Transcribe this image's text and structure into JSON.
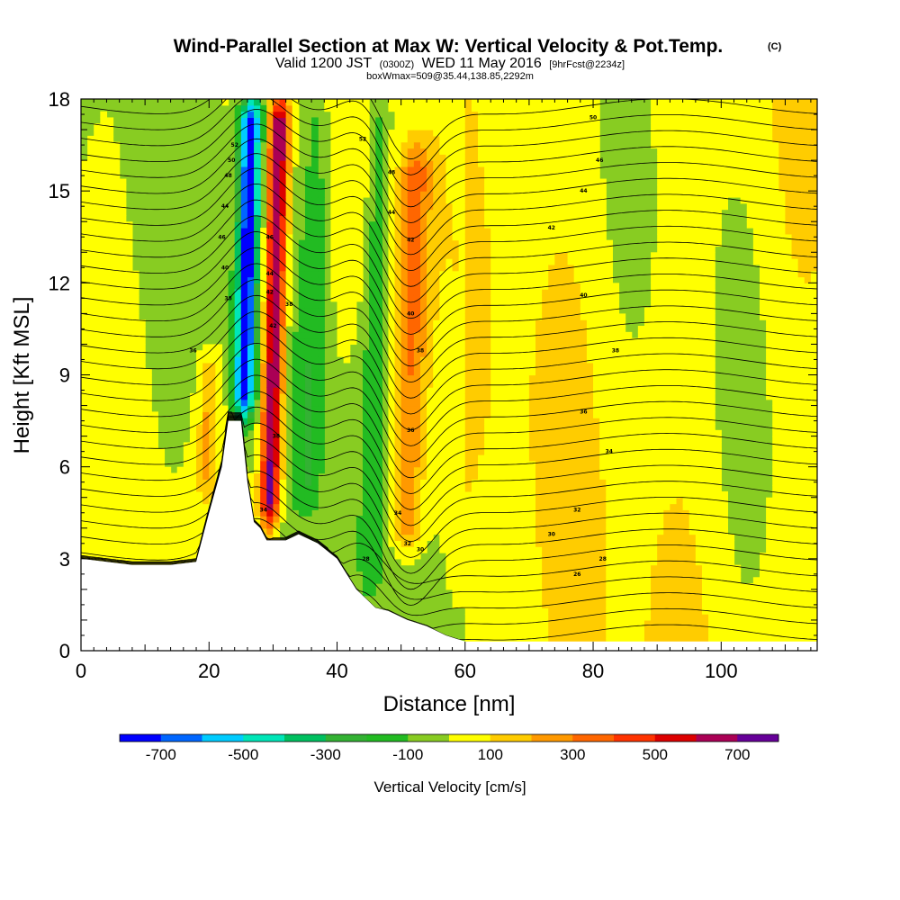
{
  "chart_data": {
    "type": "heatmap",
    "title": "Wind-Parallel Section at Max W: Vertical Velocity & Pot.Temp.",
    "title_mark": "(C)",
    "subtitle_valid": "Valid 1200 JST",
    "subtitle_utc": "(0300Z)",
    "subtitle_date": "WED 11 May 2016",
    "subtitle_fcst": "[9hrFcst@2234z]",
    "subtitle_box": "boxWmax=509@35.44,138.85,2292m",
    "xlabel": "Distance [nm]",
    "ylabel": "Height [Kft MSL]",
    "xlim": [
      0,
      115
    ],
    "ylim": [
      0,
      18
    ],
    "x_ticks": [
      "0",
      "20",
      "40",
      "60",
      "80",
      "100"
    ],
    "y_ticks": [
      "0",
      "3",
      "6",
      "9",
      "12",
      "15",
      "18"
    ],
    "colorbar_title": "Vertical Velocity [cm/s]",
    "colorbar_ticks": [
      "-700",
      "-500",
      "-300",
      "-100",
      "100",
      "300",
      "500",
      "700"
    ],
    "colorbar_bins": [
      -800,
      -700,
      -600,
      -500,
      -400,
      -300,
      -200,
      -100,
      0,
      100,
      200,
      300,
      400,
      500,
      600,
      700,
      800
    ],
    "colorbar_colors": [
      "#0000ff",
      "#0066ff",
      "#00ccff",
      "#00e6b8",
      "#00c060",
      "#33b233",
      "#22bb22",
      "#88cc22",
      "#ffff00",
      "#ffcc00",
      "#ff9900",
      "#ff6600",
      "#ff3300",
      "#dd0000",
      "#aa0055",
      "#660099"
    ],
    "terrain": [
      [
        0,
        3.0
      ],
      [
        8,
        2.8
      ],
      [
        14,
        2.8
      ],
      [
        18,
        2.9
      ],
      [
        20,
        4.5
      ],
      [
        22,
        6.0
      ],
      [
        23,
        7.5
      ],
      [
        25,
        7.5
      ],
      [
        26,
        5.5
      ],
      [
        27,
        4.2
      ],
      [
        28,
        4.0
      ],
      [
        29,
        3.6
      ],
      [
        32,
        3.6
      ],
      [
        34,
        3.8
      ],
      [
        37,
        3.5
      ],
      [
        40,
        3.0
      ],
      [
        43,
        2.0
      ],
      [
        46,
        1.4
      ],
      [
        48,
        1.3
      ],
      [
        51,
        1.0
      ],
      [
        54,
        0.8
      ],
      [
        57,
        0.5
      ],
      [
        60,
        0.3
      ],
      [
        65,
        0.3
      ],
      [
        80,
        0.3
      ],
      [
        100,
        0.3
      ],
      [
        115,
        0.3
      ]
    ],
    "velocity_features": [
      {
        "x": 25.5,
        "y_top": 18,
        "y_bottom": 7.5,
        "half_width": 1.6,
        "peak": -750
      },
      {
        "x": 30.0,
        "y_top": 18,
        "y_bottom": 4.0,
        "half_width": 1.6,
        "peak": 780
      },
      {
        "x": 36.0,
        "y_top": 18,
        "y_bottom": 4.5,
        "half_width": 2.0,
        "peak": -150
      },
      {
        "x": 51.5,
        "y_top": 16.5,
        "y_bottom": 3.0,
        "half_width": 2.5,
        "peak": 320
      },
      {
        "x": 45.5,
        "y_top": 18,
        "y_bottom": 2.0,
        "half_width": 1.5,
        "peak": -150
      },
      {
        "x": 20.0,
        "y_top": 9.5,
        "y_bottom": 5.0,
        "half_width": 1.5,
        "peak": 200
      }
    ],
    "theta_contour_labels": [
      {
        "x": 24.0,
        "y": 16.5,
        "text": "52"
      },
      {
        "x": 23.5,
        "y": 16.0,
        "text": "50"
      },
      {
        "x": 23.0,
        "y": 15.5,
        "text": "48"
      },
      {
        "x": 22.5,
        "y": 14.5,
        "text": "44"
      },
      {
        "x": 22.0,
        "y": 13.5,
        "text": "46"
      },
      {
        "x": 22.5,
        "y": 12.5,
        "text": "40"
      },
      {
        "x": 23.0,
        "y": 11.5,
        "text": "38"
      },
      {
        "x": 17.5,
        "y": 9.8,
        "text": "36"
      },
      {
        "x": 29.5,
        "y": 13.5,
        "text": "46"
      },
      {
        "x": 29.5,
        "y": 12.3,
        "text": "44"
      },
      {
        "x": 29.5,
        "y": 11.7,
        "text": "42"
      },
      {
        "x": 30.0,
        "y": 10.6,
        "text": "42"
      },
      {
        "x": 32.5,
        "y": 11.3,
        "text": "38"
      },
      {
        "x": 30.5,
        "y": 7.0,
        "text": "38"
      },
      {
        "x": 28.5,
        "y": 4.6,
        "text": "34"
      },
      {
        "x": 44.0,
        "y": 16.7,
        "text": "52"
      },
      {
        "x": 48.5,
        "y": 15.6,
        "text": "48"
      },
      {
        "x": 48.5,
        "y": 14.3,
        "text": "44"
      },
      {
        "x": 51.5,
        "y": 13.4,
        "text": "42"
      },
      {
        "x": 51.5,
        "y": 11.0,
        "text": "40"
      },
      {
        "x": 53.0,
        "y": 9.8,
        "text": "38"
      },
      {
        "x": 51.5,
        "y": 7.2,
        "text": "36"
      },
      {
        "x": 49.5,
        "y": 4.5,
        "text": "34"
      },
      {
        "x": 51.0,
        "y": 3.5,
        "text": "32"
      },
      {
        "x": 53.0,
        "y": 3.3,
        "text": "30"
      },
      {
        "x": 44.5,
        "y": 3.0,
        "text": "28"
      },
      {
        "x": 80.0,
        "y": 17.4,
        "text": "50"
      },
      {
        "x": 81.0,
        "y": 16.0,
        "text": "46"
      },
      {
        "x": 78.5,
        "y": 15.0,
        "text": "44"
      },
      {
        "x": 73.5,
        "y": 13.8,
        "text": "42"
      },
      {
        "x": 78.5,
        "y": 11.6,
        "text": "40"
      },
      {
        "x": 83.5,
        "y": 9.8,
        "text": "38"
      },
      {
        "x": 78.5,
        "y": 7.8,
        "text": "36"
      },
      {
        "x": 82.5,
        "y": 6.5,
        "text": "34"
      },
      {
        "x": 77.5,
        "y": 4.6,
        "text": "32"
      },
      {
        "x": 73.5,
        "y": 3.8,
        "text": "30"
      },
      {
        "x": 81.5,
        "y": 3.0,
        "text": "28"
      },
      {
        "x": 77.5,
        "y": 2.5,
        "text": "26"
      }
    ]
  }
}
